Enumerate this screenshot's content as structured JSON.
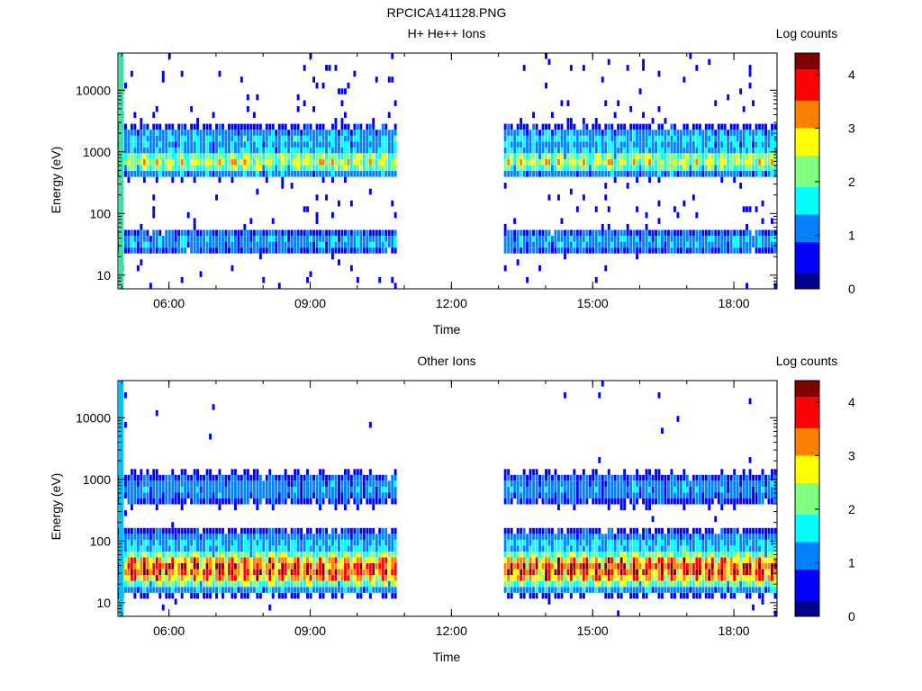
{
  "figure": {
    "title": "RPCICA141128.PNG"
  },
  "colors": {
    "colormap": [
      "#00008f",
      "#0000ff",
      "#0080ff",
      "#00ffff",
      "#80ff80",
      "#ffff00",
      "#ff8000",
      "#ff0000",
      "#800000"
    ]
  },
  "chart_data": [
    {
      "type": "heatmap",
      "title": "H+ He++ Ions",
      "xlabel": "Time",
      "ylabel": "Energy (eV)",
      "yscale": "log",
      "xlim": [
        "04:55",
        "18:55"
      ],
      "ylim": [
        6,
        40000
      ],
      "xticks": [
        "06:00",
        "09:00",
        "12:00",
        "15:00",
        "18:00"
      ],
      "yticks": [
        {
          "value": 10,
          "label": "10"
        },
        {
          "value": 100,
          "label": "100"
        },
        {
          "value": 1000,
          "label": "1000"
        },
        {
          "value": 10000,
          "label": "10000"
        }
      ],
      "colorbar": {
        "label": "Log counts",
        "range": [
          0,
          4.4
        ],
        "ticks": [
          "0",
          "1",
          "2",
          "3",
          "4"
        ]
      },
      "data_gap": [
        "10:50",
        "13:05"
      ],
      "series": [
        {
          "name": "",
          "energy_band_eV": 1600,
          "log_counts": 1.5
        },
        {
          "name": "",
          "energy_band_eV": 700,
          "log_counts": 2.6
        },
        {
          "name": "",
          "energy_band_eV": 35,
          "log_counts": 1.3
        }
      ]
    },
    {
      "type": "heatmap",
      "title": "Other Ions",
      "xlabel": "Time",
      "ylabel": "Energy (eV)",
      "yscale": "log",
      "xlim": [
        "04:55",
        "18:55"
      ],
      "ylim": [
        6,
        40000
      ],
      "xticks": [
        "06:00",
        "09:00",
        "12:00",
        "15:00",
        "18:00"
      ],
      "yticks": [
        {
          "value": 10,
          "label": "10"
        },
        {
          "value": 100,
          "label": "100"
        },
        {
          "value": 1000,
          "label": "1000"
        },
        {
          "value": 10000,
          "label": "10000"
        }
      ],
      "colorbar": {
        "label": "Log counts",
        "range": [
          0,
          4.4
        ],
        "ticks": [
          "0",
          "1",
          "2",
          "3",
          "4"
        ]
      },
      "data_gap": [
        "10:50",
        "13:05"
      ],
      "series": [
        {
          "name": "",
          "energy_band_eV": 35,
          "log_counts": 4.0
        },
        {
          "name": "",
          "energy_band_eV": 80,
          "log_counts": 1.5
        },
        {
          "name": "",
          "energy_band_eV": 700,
          "log_counts": 1.2
        }
      ]
    }
  ]
}
